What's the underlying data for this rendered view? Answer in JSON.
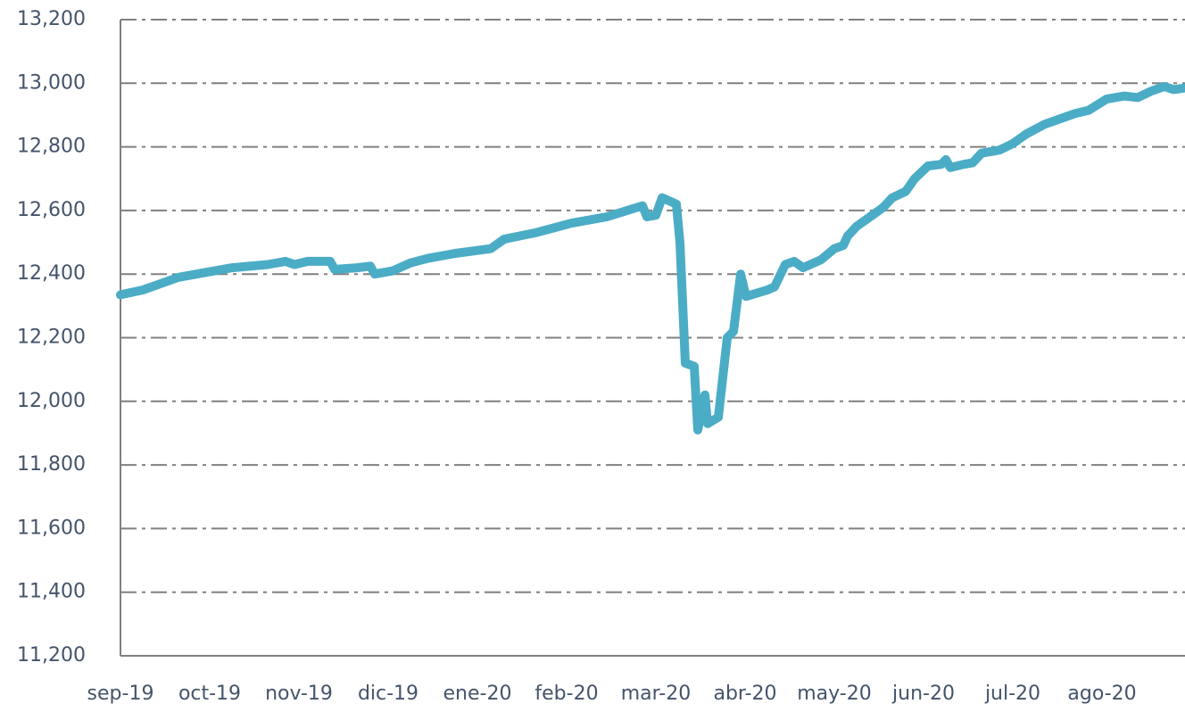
{
  "chart_data": {
    "type": "line",
    "x": [
      0,
      0.25,
      0.45,
      0.65,
      0.95,
      1.25,
      1.65,
      1.85,
      1.95,
      2.1,
      2.35,
      2.4,
      2.65,
      2.8,
      2.85,
      3.05,
      3.25,
      3.45,
      3.75,
      4.15,
      4.3,
      4.65,
      5.05,
      5.45,
      5.85,
      5.9,
      6.0,
      6.07,
      6.15,
      6.23,
      6.27,
      6.33,
      6.43,
      6.47,
      6.55,
      6.58,
      6.7,
      6.8,
      6.87,
      6.95,
      7.01,
      7.25,
      7.33,
      7.45,
      7.55,
      7.65,
      7.85,
      8.0,
      8.1,
      8.15,
      8.25,
      8.45,
      8.55,
      8.65,
      8.8,
      8.9,
      9.05,
      9.2,
      9.25,
      9.3,
      9.45,
      9.55,
      9.65,
      9.85,
      10.0,
      10.15,
      10.35,
      10.55,
      10.7,
      10.85,
      11.05,
      11.25,
      11.4,
      11.55,
      11.7,
      11.8,
      11.93
    ],
    "series": [
      {
        "color": "#4bacc6",
        "values": [
          12335,
          12350,
          12370,
          12390,
          12405,
          12420,
          12430,
          12440,
          12430,
          12440,
          12440,
          12415,
          12420,
          12425,
          12400,
          12410,
          12435,
          12450,
          12465,
          12480,
          12510,
          12530,
          12560,
          12580,
          12615,
          12580,
          12585,
          12640,
          12630,
          12620,
          12500,
          12120,
          12110,
          11910,
          12020,
          11930,
          11950,
          12200,
          12220,
          12400,
          12330,
          12350,
          12360,
          12430,
          12440,
          12420,
          12445,
          12480,
          12490,
          12520,
          12550,
          12590,
          12610,
          12640,
          12660,
          12700,
          12740,
          12745,
          12760,
          12735,
          12745,
          12750,
          12780,
          12790,
          12810,
          12840,
          12870,
          12890,
          12905,
          12915,
          12950,
          12960,
          12955,
          12975,
          12990,
          12980,
          12985
        ]
      }
    ],
    "xlim": [
      0,
      11.93
    ],
    "xticks": [
      {
        "value": 0,
        "label": "sep-19"
      },
      {
        "value": 1,
        "label": "oct-19"
      },
      {
        "value": 2,
        "label": "nov-19"
      },
      {
        "value": 3,
        "label": "dic-19"
      },
      {
        "value": 4,
        "label": "ene-20"
      },
      {
        "value": 5,
        "label": "feb-20"
      },
      {
        "value": 6,
        "label": "mar-20"
      },
      {
        "value": 7,
        "label": "abr-20"
      },
      {
        "value": 8,
        "label": "may-20"
      },
      {
        "value": 9,
        "label": "jun-20"
      },
      {
        "value": 10,
        "label": "jul-20"
      },
      {
        "value": 11,
        "label": "ago-20"
      }
    ],
    "ylim": [
      11200,
      13200
    ],
    "yticks": [
      {
        "value": 11200,
        "label": "11,200"
      },
      {
        "value": 11400,
        "label": "11,400"
      },
      {
        "value": 11600,
        "label": "11,600"
      },
      {
        "value": 11800,
        "label": "11,800"
      },
      {
        "value": 12000,
        "label": "12,000"
      },
      {
        "value": 12200,
        "label": "12,200"
      },
      {
        "value": 12400,
        "label": "12,400"
      },
      {
        "value": 12600,
        "label": "12,600"
      },
      {
        "value": 12800,
        "label": "12,800"
      },
      {
        "value": 13000,
        "label": "13,000"
      },
      {
        "value": 13200,
        "label": "13,200"
      }
    ],
    "grid": true
  }
}
